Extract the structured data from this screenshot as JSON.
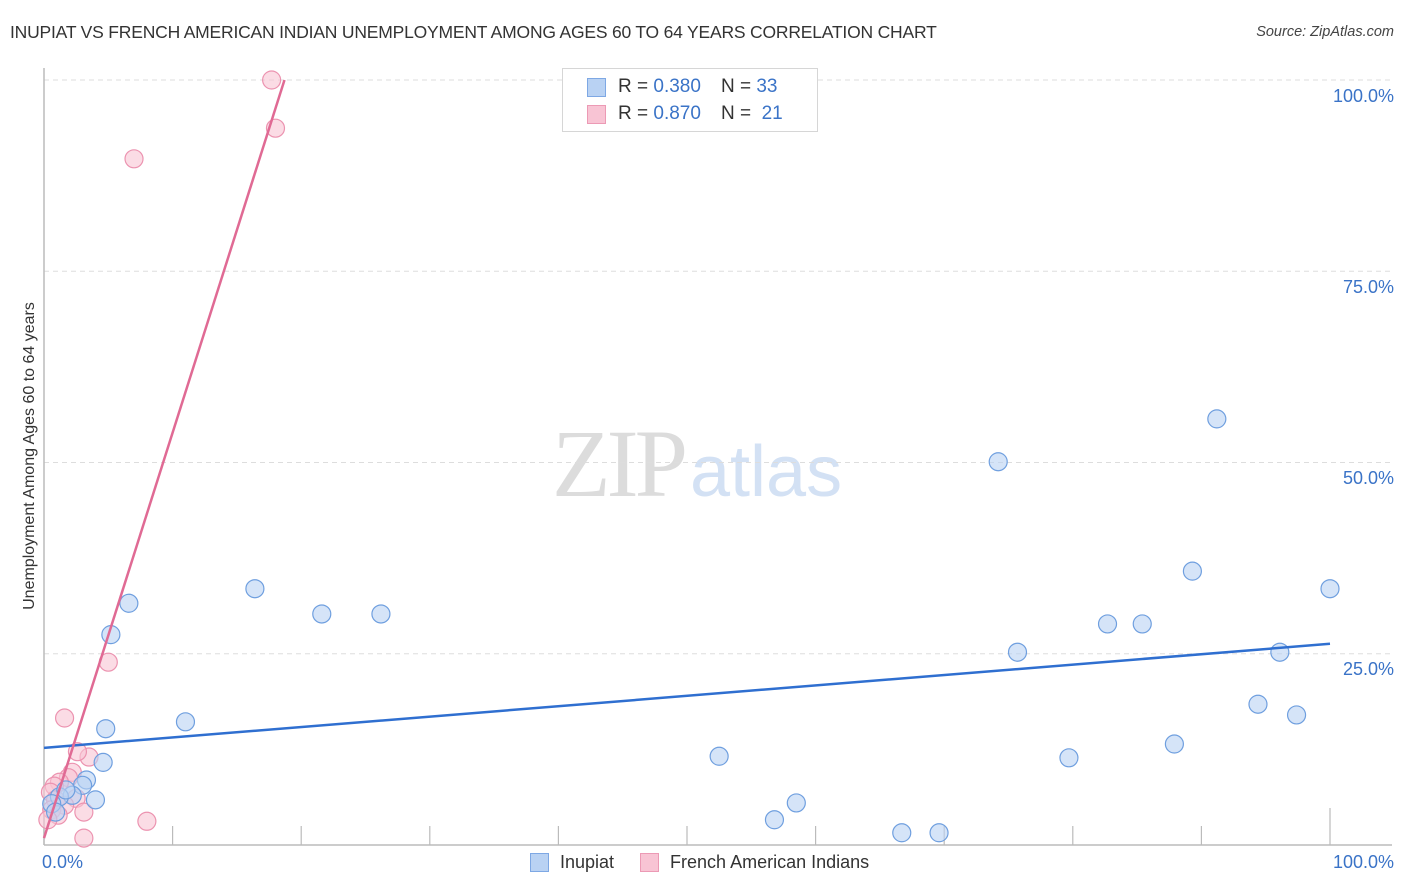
{
  "header": {
    "title": "INUPIAT VS FRENCH AMERICAN INDIAN UNEMPLOYMENT AMONG AGES 60 TO 64 YEARS CORRELATION CHART",
    "source": "Source: ZipAtlas.com"
  },
  "axes": {
    "ylabel": "Unemployment Among Ages 60 to 64 years",
    "y_ticks": [
      "100.0%",
      "75.0%",
      "50.0%",
      "25.0%"
    ],
    "x_tick_left": "0.0%",
    "x_tick_right": "100.0%"
  },
  "legend": {
    "rows": [
      {
        "r_label": "R =",
        "r_value": "0.380",
        "n_label": "N =",
        "n_value": "33"
      },
      {
        "r_label": "R =",
        "r_value": "0.870",
        "n_label": "N =",
        "n_value": "21"
      }
    ],
    "series": [
      {
        "label": "Inupiat"
      },
      {
        "label": "French American Indians"
      }
    ]
  },
  "watermark": {
    "zip": "ZIP",
    "atlas": "atlas"
  },
  "colors": {
    "inupiat_fill": "#b9d2f3",
    "inupiat_stroke": "#6f9fdf",
    "inupiat_line": "#2f6fd0",
    "french_fill": "#f8c4d4",
    "french_stroke": "#ec93b0",
    "french_line": "#e06a94",
    "tick_label": "#3a73c7",
    "grid": "#dddddd",
    "axis": "#bbbbbb"
  },
  "chart_data": {
    "type": "scatter",
    "title": "INUPIAT VS FRENCH AMERICAN INDIAN UNEMPLOYMENT AMONG AGES 60 TO 64 YEARS CORRELATION CHART",
    "xlabel": "",
    "ylabel": "Unemployment Among Ages 60 to 64 years",
    "xlim": [
      0,
      100
    ],
    "ylim": [
      0,
      100
    ],
    "x_tick_labels": [
      "0.0%",
      "100.0%"
    ],
    "y_tick_labels": [
      "25.0%",
      "50.0%",
      "75.0%",
      "100.0%"
    ],
    "grid": true,
    "legend_position": "top-center and bottom",
    "series": [
      {
        "name": "Inupiat",
        "R": 0.38,
        "N": 33,
        "trendline": {
          "x": [
            0,
            100
          ],
          "y": [
            12.7,
            26.3
          ]
        },
        "points": [
          [
            6.6,
            31.6
          ],
          [
            5.2,
            27.5
          ],
          [
            16.4,
            33.5
          ],
          [
            21.6,
            30.2
          ],
          [
            26.2,
            30.2
          ],
          [
            11.0,
            16.1
          ],
          [
            4.8,
            15.2
          ],
          [
            4.6,
            10.8
          ],
          [
            3.3,
            8.5
          ],
          [
            3.0,
            7.8
          ],
          [
            4.0,
            5.9
          ],
          [
            2.2,
            6.5
          ],
          [
            1.2,
            6.3
          ],
          [
            0.6,
            5.4
          ],
          [
            0.9,
            4.3
          ],
          [
            1.7,
            7.2
          ],
          [
            74.2,
            50.1
          ],
          [
            91.2,
            55.7
          ],
          [
            89.3,
            35.8
          ],
          [
            100.0,
            33.5
          ],
          [
            82.7,
            28.9
          ],
          [
            85.4,
            28.9
          ],
          [
            75.7,
            25.2
          ],
          [
            96.1,
            25.2
          ],
          [
            94.4,
            18.4
          ],
          [
            97.4,
            17.0
          ],
          [
            87.9,
            13.2
          ],
          [
            79.7,
            11.4
          ],
          [
            52.5,
            11.6
          ],
          [
            58.5,
            5.5
          ],
          [
            56.8,
            3.3
          ],
          [
            66.7,
            1.6
          ],
          [
            69.6,
            1.6
          ]
        ]
      },
      {
        "name": "French American Indians",
        "R": 0.87,
        "N": 21,
        "trendline": {
          "x": [
            0,
            18.7
          ],
          "y": [
            0.9,
            100
          ]
        },
        "points": [
          [
            17.7,
            100.0
          ],
          [
            18.0,
            93.7
          ],
          [
            7.0,
            89.7
          ],
          [
            5.0,
            23.9
          ],
          [
            1.6,
            16.6
          ],
          [
            3.5,
            11.5
          ],
          [
            2.6,
            12.2
          ],
          [
            2.2,
            9.5
          ],
          [
            1.9,
            8.8
          ],
          [
            1.2,
            8.2
          ],
          [
            0.8,
            7.7
          ],
          [
            0.5,
            6.9
          ],
          [
            0.9,
            5.9
          ],
          [
            2.5,
            6.1
          ],
          [
            1.6,
            5.2
          ],
          [
            0.6,
            4.6
          ],
          [
            1.1,
            3.9
          ],
          [
            0.3,
            3.3
          ],
          [
            3.1,
            4.3
          ],
          [
            8.0,
            3.1
          ],
          [
            3.1,
            0.9
          ]
        ]
      }
    ]
  }
}
